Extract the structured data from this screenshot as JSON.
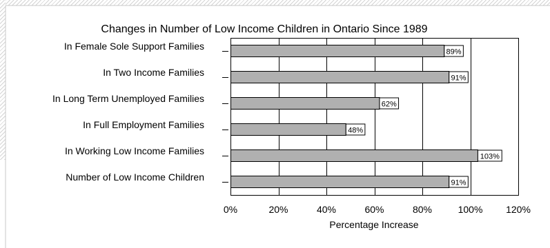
{
  "chart_data": {
    "type": "bar",
    "orientation": "horizontal",
    "title": "Changes in Number of Low Income Children in Ontario Since 1989",
    "xlabel": "Percentage Increase",
    "ylabel": "",
    "categories": [
      "In Female Sole Support Families",
      "In Two Income Families",
      "In Long Term Unemployed Families",
      "In Full Employment Families",
      "In Working Low Income Families",
      "Number of Low Income Children"
    ],
    "values": [
      89,
      91,
      62,
      48,
      103,
      91
    ],
    "data_labels": [
      "89%",
      "91%",
      "62%",
      "48%",
      "103%",
      "91%"
    ],
    "xlim": [
      0,
      120
    ],
    "xticks": [
      0,
      20,
      40,
      60,
      80,
      100,
      120
    ],
    "xtick_labels": [
      "0%",
      "20%",
      "40%",
      "60%",
      "80%",
      "100%",
      "120%"
    ],
    "grid": true,
    "legend": "none",
    "bar_color": "#b0b0b0",
    "frame_color": "#000000"
  }
}
